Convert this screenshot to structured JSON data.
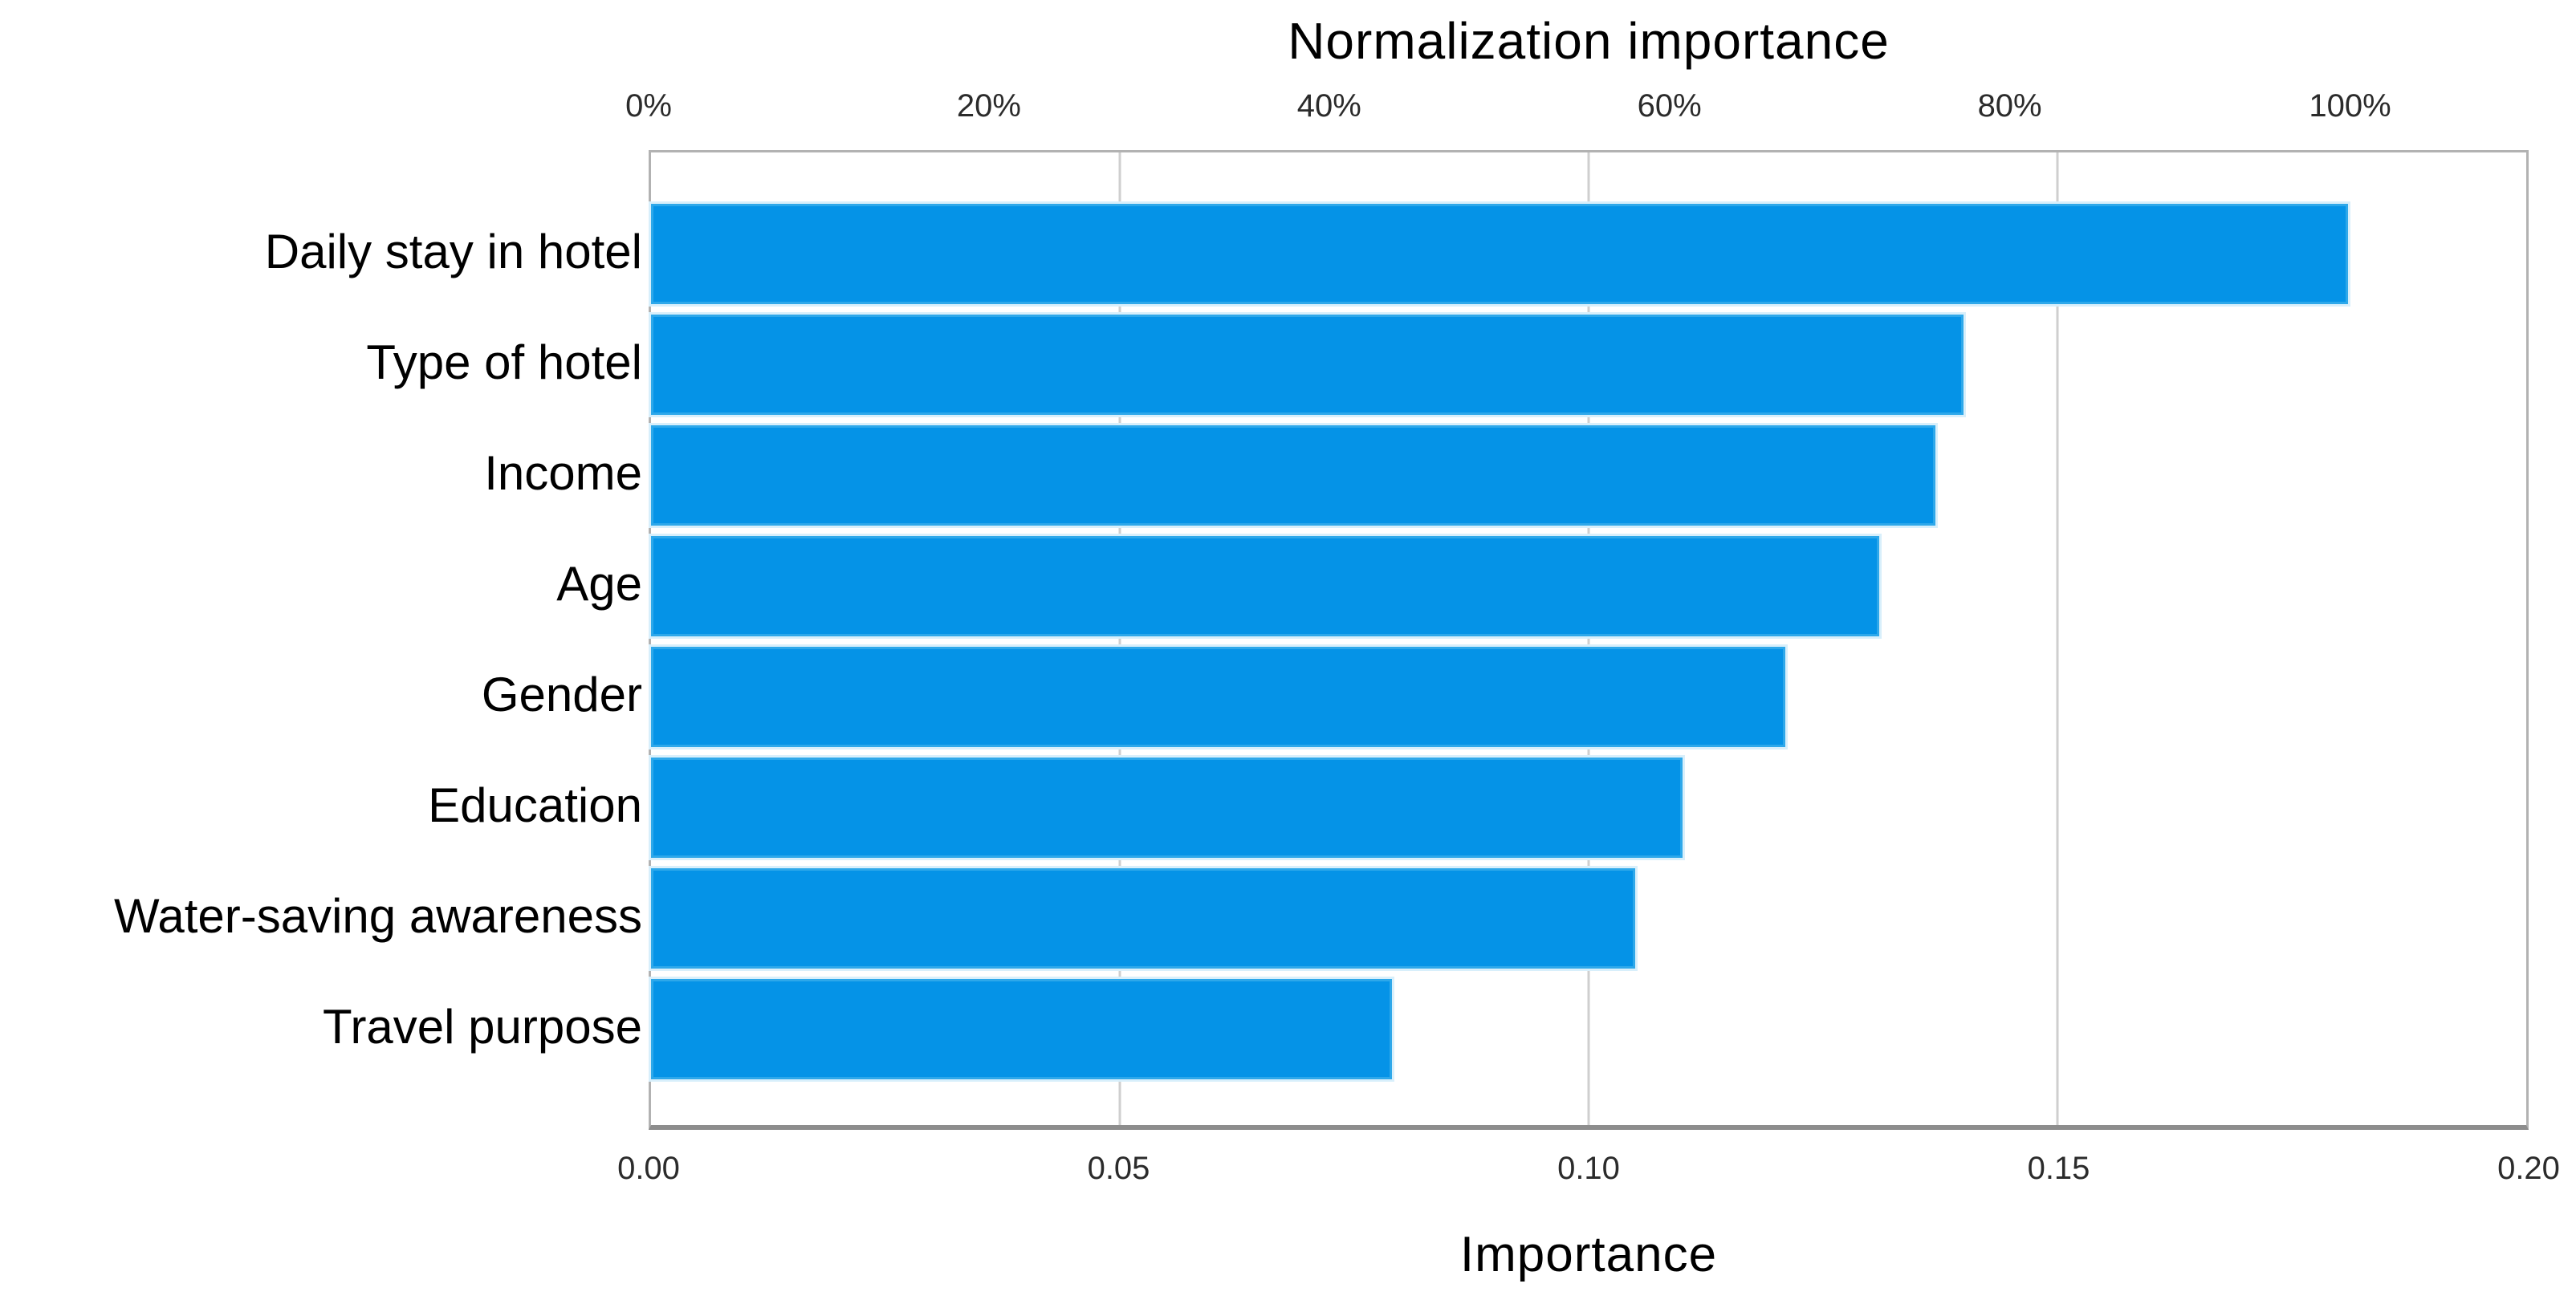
{
  "title": "Normalization importance",
  "bottom_label": "Importance",
  "colors": {
    "bar_fill": "#0593e7",
    "bar_edge": "#2ea8ea",
    "bar_halo": "#d8effb",
    "frame_border": "#b2b2b2",
    "axis_line": "#8d8d8d",
    "gridline": "#cfcfcf",
    "text": "#000000",
    "tick_text": "#2b2b2b"
  },
  "chart_data": {
    "type": "bar",
    "orientation": "horizontal",
    "title": "Normalization importance",
    "xlabel": "Importance",
    "ylabel": "",
    "legend": "none",
    "grid": "vertical gridlines at 0.05, 0.10, 0.15",
    "categories": [
      "Daily stay in hotel",
      "Type of hotel",
      "Income",
      "Age",
      "Gender",
      "Education",
      "Water-saving awareness",
      "Travel purpose"
    ],
    "values": [
      0.181,
      0.14,
      0.137,
      0.131,
      0.121,
      0.11,
      0.105,
      0.079
    ],
    "normalized_pct": [
      100,
      77,
      76,
      72,
      67,
      61,
      58,
      44
    ],
    "top_axis": {
      "label": "Normalization importance",
      "ticks": [
        "0%",
        "20%",
        "40%",
        "60%",
        "80%",
        "100%"
      ],
      "tick_values_pct": [
        0,
        20,
        40,
        60,
        80,
        100
      ]
    },
    "bottom_axis": {
      "label": "Importance",
      "ticks": [
        "0.00",
        "0.05",
        "0.10",
        "0.15",
        "0.20"
      ],
      "tick_values": [
        0.0,
        0.05,
        0.1,
        0.15,
        0.2
      ],
      "min": 0.0,
      "max": 0.2
    }
  }
}
